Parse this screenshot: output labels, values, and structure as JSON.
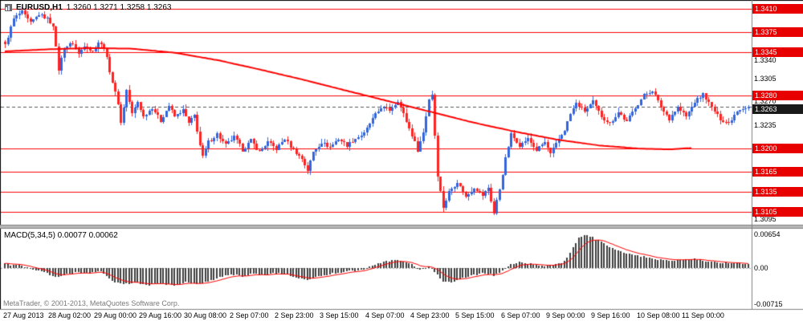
{
  "header": {
    "symbol_label": "EURUSD,H1",
    "quotes": "1.3260 1.3271 1.3258 1.3263"
  },
  "footer": {
    "credit": "MetaTrader, © 2001-2013, MetaQuotes Software Corp."
  },
  "chart_data": {
    "type": "candlestick",
    "symbol": "EURUSD",
    "timeframe": "H1",
    "bars_count": 264,
    "colors": {
      "up": "#3366dd",
      "down": "#ff2222",
      "ma": "#ff0000",
      "level": "#ff0000",
      "level_badge_bg": "#e80000",
      "current_badge_bg": "#1a1a1a",
      "hist": "#3f3f3f",
      "signal": "#ff0000"
    },
    "price_panel": {
      "price_max": 1.3423,
      "price_min": 1.3086,
      "current_price": "1.3263",
      "level_lines": [
        "1.3410",
        "1.3375",
        "1.3345",
        "1.3280",
        "1.3200",
        "1.3165",
        "1.3135",
        "1.3105"
      ],
      "y_ticks": [
        [
          "1.3340",
          6
        ],
        [
          "1.3305",
          0
        ],
        [
          "1.3270",
          -1
        ],
        [
          "1.3235",
          0
        ],
        [
          "1.3095",
          0
        ]
      ],
      "ma_description": "red slow moving average declining from 1.3350 to 1.3200",
      "price_anchors": [
        [
          0,
          1.3355
        ],
        [
          3,
          1.3395
        ],
        [
          6,
          1.3405
        ],
        [
          9,
          1.3388
        ],
        [
          12,
          1.3402
        ],
        [
          15,
          1.3395
        ],
        [
          17,
          1.3385
        ],
        [
          19,
          1.3318
        ],
        [
          21,
          1.3352
        ],
        [
          24,
          1.3358
        ],
        [
          26,
          1.3342
        ],
        [
          28,
          1.3355
        ],
        [
          31,
          1.3345
        ],
        [
          33,
          1.336
        ],
        [
          35,
          1.3352
        ],
        [
          38,
          1.33
        ],
        [
          40,
          1.3268
        ],
        [
          41,
          1.3238
        ],
        [
          43,
          1.3288
        ],
        [
          45,
          1.3252
        ],
        [
          47,
          1.327
        ],
        [
          49,
          1.3248
        ],
        [
          52,
          1.3262
        ],
        [
          55,
          1.3242
        ],
        [
          58,
          1.3265
        ],
        [
          60,
          1.3248
        ],
        [
          63,
          1.3258
        ],
        [
          65,
          1.3238
        ],
        [
          67,
          1.325
        ],
        [
          69,
          1.3205
        ],
        [
          70,
          1.3188
        ],
        [
          72,
          1.321
        ],
        [
          75,
          1.3222
        ],
        [
          78,
          1.3205
        ],
        [
          81,
          1.3218
        ],
        [
          84,
          1.3198
        ],
        [
          87,
          1.3212
        ],
        [
          90,
          1.3195
        ],
        [
          93,
          1.321
        ],
        [
          96,
          1.32
        ],
        [
          99,
          1.3215
        ],
        [
          102,
          1.3198
        ],
        [
          105,
          1.3185
        ],
        [
          107,
          1.3168
        ],
        [
          109,
          1.3195
        ],
        [
          112,
          1.321
        ],
        [
          115,
          1.3202
        ],
        [
          118,
          1.3215
        ],
        [
          121,
          1.3205
        ],
        [
          124,
          1.3215
        ],
        [
          127,
          1.3222
        ],
        [
          130,
          1.3245
        ],
        [
          133,
          1.3262
        ],
        [
          136,
          1.3258
        ],
        [
          139,
          1.3272
        ],
        [
          141,
          1.3252
        ],
        [
          144,
          1.322
        ],
        [
          146,
          1.3198
        ],
        [
          148,
          1.3225
        ],
        [
          150,
          1.3275
        ],
        [
          151,
          1.3282
        ],
        [
          152,
          1.322
        ],
        [
          153,
          1.316
        ],
        [
          155,
          1.3112
        ],
        [
          157,
          1.3135
        ],
        [
          160,
          1.315
        ],
        [
          163,
          1.3128
        ],
        [
          166,
          1.3142
        ],
        [
          169,
          1.313
        ],
        [
          171,
          1.3142
        ],
        [
          173,
          1.3103
        ],
        [
          175,
          1.314
        ],
        [
          177,
          1.3185
        ],
        [
          179,
          1.3222
        ],
        [
          182,
          1.3205
        ],
        [
          185,
          1.3215
        ],
        [
          188,
          1.3198
        ],
        [
          191,
          1.321
        ],
        [
          193,
          1.3192
        ],
        [
          196,
          1.3215
        ],
        [
          198,
          1.3228
        ],
        [
          200,
          1.3252
        ],
        [
          202,
          1.3268
        ],
        [
          205,
          1.3256
        ],
        [
          208,
          1.327
        ],
        [
          211,
          1.3248
        ],
        [
          214,
          1.3238
        ],
        [
          217,
          1.3255
        ],
        [
          220,
          1.324
        ],
        [
          223,
          1.3262
        ],
        [
          226,
          1.328
        ],
        [
          229,
          1.3288
        ],
        [
          232,
          1.3262
        ],
        [
          235,
          1.3245
        ],
        [
          238,
          1.3262
        ],
        [
          241,
          1.3248
        ],
        [
          244,
          1.327
        ],
        [
          247,
          1.3282
        ],
        [
          250,
          1.3262
        ],
        [
          253,
          1.3244
        ],
        [
          256,
          1.3238
        ],
        [
          259,
          1.3258
        ],
        [
          263,
          1.3263
        ]
      ],
      "ma_anchors": [
        [
          0,
          1.3346
        ],
        [
          15,
          1.3349
        ],
        [
          30,
          1.3351
        ],
        [
          45,
          1.335
        ],
        [
          60,
          1.3344
        ],
        [
          75,
          1.3333
        ],
        [
          90,
          1.3319
        ],
        [
          105,
          1.3304
        ],
        [
          120,
          1.3288
        ],
        [
          135,
          1.3272
        ],
        [
          150,
          1.3256
        ],
        [
          165,
          1.324
        ],
        [
          180,
          1.3226
        ],
        [
          195,
          1.3214
        ],
        [
          210,
          1.3205
        ],
        [
          225,
          1.32
        ],
        [
          235,
          1.3199
        ],
        [
          243,
          1.3201
        ]
      ]
    },
    "macd_panel": {
      "label": "MACD(5,34,5) 0.00077 0.00062",
      "axis_max": 0.00654,
      "axis_min": -0.00715,
      "axis_labels": {
        "max": "0.00654",
        "zero": "0.00",
        "min": "-0.00715"
      },
      "macd_anchors": [
        [
          0,
          0.0008
        ],
        [
          6,
          0.0004
        ],
        [
          10,
          -0.0002
        ],
        [
          14,
          -0.0008
        ],
        [
          18,
          -0.0018
        ],
        [
          22,
          -0.0012
        ],
        [
          26,
          -0.0008
        ],
        [
          30,
          -0.001
        ],
        [
          34,
          -0.0006
        ],
        [
          38,
          -0.0025
        ],
        [
          42,
          -0.0032
        ],
        [
          46,
          -0.0028
        ],
        [
          50,
          -0.0033
        ],
        [
          55,
          -0.003
        ],
        [
          60,
          -0.0034
        ],
        [
          64,
          -0.0028
        ],
        [
          68,
          -0.003
        ],
        [
          72,
          -0.0026
        ],
        [
          76,
          -0.0018
        ],
        [
          80,
          -0.0012
        ],
        [
          84,
          -0.0015
        ],
        [
          88,
          -0.0011
        ],
        [
          92,
          -0.0014
        ],
        [
          96,
          -0.001
        ],
        [
          100,
          -0.0013
        ],
        [
          104,
          -0.002
        ],
        [
          108,
          -0.0022
        ],
        [
          112,
          -0.0015
        ],
        [
          116,
          -0.001
        ],
        [
          120,
          -0.0008
        ],
        [
          124,
          -0.0005
        ],
        [
          127,
          -0.0002
        ],
        [
          130,
          0.0005
        ],
        [
          134,
          0.0012
        ],
        [
          138,
          0.0016
        ],
        [
          141,
          0.0013
        ],
        [
          144,
          0.0006
        ],
        [
          147,
          -0.0004
        ],
        [
          150,
          0.0002
        ],
        [
          152,
          -0.0008
        ],
        [
          155,
          -0.0025
        ],
        [
          158,
          -0.0028
        ],
        [
          161,
          -0.0022
        ],
        [
          164,
          -0.0016
        ],
        [
          167,
          -0.0012
        ],
        [
          170,
          -0.001
        ],
        [
          173,
          -0.0014
        ],
        [
          176,
          -0.0006
        ],
        [
          179,
          0.0008
        ],
        [
          182,
          0.0012
        ],
        [
          185,
          0.0009
        ],
        [
          188,
          0.0006
        ],
        [
          191,
          0.0004
        ],
        [
          194,
          0.0006
        ],
        [
          197,
          0.001
        ],
        [
          199,
          0.002
        ],
        [
          201,
          0.004
        ],
        [
          203,
          0.0058
        ],
        [
          205,
          0.0065
        ],
        [
          207,
          0.0062
        ],
        [
          210,
          0.0054
        ],
        [
          213,
          0.0044
        ],
        [
          216,
          0.0036
        ],
        [
          219,
          0.003
        ],
        [
          222,
          0.0026
        ],
        [
          225,
          0.0024
        ],
        [
          228,
          0.002
        ],
        [
          231,
          0.0017
        ],
        [
          234,
          0.0015
        ],
        [
          237,
          0.0014
        ],
        [
          240,
          0.0016
        ],
        [
          243,
          0.0018
        ],
        [
          246,
          0.0016
        ],
        [
          249,
          0.0013
        ],
        [
          252,
          0.0011
        ],
        [
          255,
          0.001
        ],
        [
          258,
          0.001
        ],
        [
          261,
          0.0008
        ],
        [
          263,
          0.0008
        ]
      ]
    },
    "x_labels": [
      "27 Aug 2013",
      "28 Aug 02:00",
      "29 Aug 00:00",
      "29 Aug 16:00",
      "30 Aug 08:00",
      "2 Sep 07:00",
      "2 Sep 23:00",
      "3 Sep 15:00",
      "4 Sep 07:00",
      "4 Sep 23:00",
      "5 Sep 15:00",
      "6 Sep 07:00",
      "9 Sep 00:00",
      "9 Sep 16:00",
      "10 Sep 08:00",
      "11 Sep 00:00"
    ],
    "time_tick_bars": [
      8,
      24,
      40,
      56,
      72,
      88,
      104,
      120,
      136,
      152,
      168,
      184,
      200,
      216,
      232,
      248
    ]
  }
}
